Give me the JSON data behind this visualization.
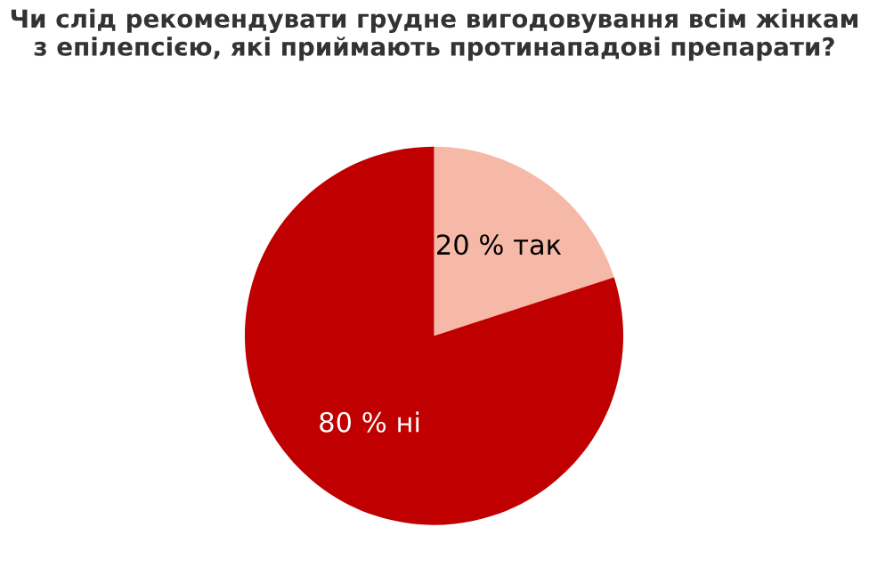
{
  "chart_data": {
    "type": "pie",
    "title": "Чи слід рекомендувати грудне вигодовування всім жінкам\nз епілепсією, які приймають протинападові препарати?",
    "categories": [
      "20 % так",
      "80 % ні"
    ],
    "values": [
      20,
      80
    ],
    "colors": [
      "#f6b9a8",
      "#c00000"
    ],
    "legend": false
  }
}
